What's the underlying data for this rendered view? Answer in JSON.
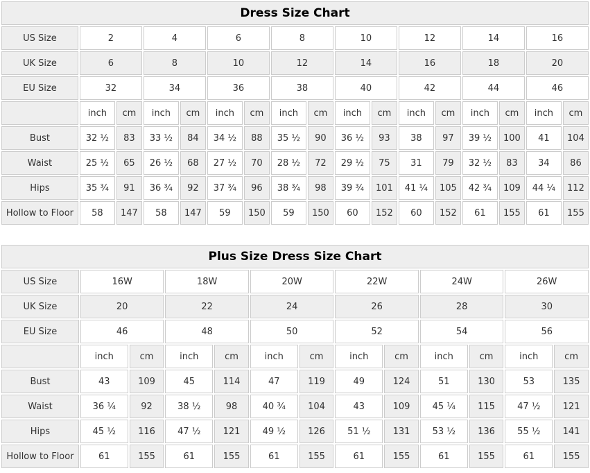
{
  "colors": {
    "cell_gray": "#eeeeee",
    "cell_white": "#ffffff",
    "border": "#cccccc",
    "text": "#333333",
    "title_text": "#000000"
  },
  "chart_data": [
    {
      "type": "table",
      "title": "Dress Size Chart",
      "unit_labels": {
        "inch": "inch",
        "cm": "cm"
      },
      "size_rows": [
        {
          "label": "US Size",
          "values": [
            "2",
            "4",
            "6",
            "8",
            "10",
            "12",
            "14",
            "16"
          ]
        },
        {
          "label": "UK Size",
          "values": [
            "6",
            "8",
            "10",
            "12",
            "14",
            "16",
            "18",
            "20"
          ]
        },
        {
          "label": "EU Size",
          "values": [
            "32",
            "34",
            "36",
            "38",
            "40",
            "42",
            "44",
            "46"
          ]
        }
      ],
      "measurement_rows": [
        {
          "label": "Bust",
          "inch": [
            "32 ½",
            "33 ½",
            "34 ½",
            "35 ½",
            "36 ½",
            "38",
            "39 ½",
            "41"
          ],
          "cm": [
            "83",
            "84",
            "88",
            "90",
            "93",
            "97",
            "100",
            "104"
          ]
        },
        {
          "label": "Waist",
          "inch": [
            "25 ½",
            "26 ½",
            "27 ½",
            "28 ½",
            "29 ½",
            "31",
            "32 ½",
            "34"
          ],
          "cm": [
            "65",
            "68",
            "70",
            "72",
            "75",
            "79",
            "83",
            "86"
          ]
        },
        {
          "label": "Hips",
          "inch": [
            "35 ¾",
            "36 ¾",
            "37 ¾",
            "38 ¾",
            "39 ¾",
            "41 ¼",
            "42 ¾",
            "44 ¼"
          ],
          "cm": [
            "91",
            "92",
            "96",
            "98",
            "101",
            "105",
            "109",
            "112"
          ]
        },
        {
          "label": "Hollow to Floor",
          "inch": [
            "58",
            "58",
            "59",
            "59",
            "60",
            "60",
            "61",
            "61"
          ],
          "cm": [
            "147",
            "147",
            "150",
            "150",
            "152",
            "152",
            "155",
            "155"
          ]
        }
      ]
    },
    {
      "type": "table",
      "title": "Plus Size Dress Size Chart",
      "unit_labels": {
        "inch": "inch",
        "cm": "cm"
      },
      "size_rows": [
        {
          "label": "US Size",
          "values": [
            "16W",
            "18W",
            "20W",
            "22W",
            "24W",
            "26W"
          ]
        },
        {
          "label": "UK Size",
          "values": [
            "20",
            "22",
            "24",
            "26",
            "28",
            "30"
          ]
        },
        {
          "label": "EU Size",
          "values": [
            "46",
            "48",
            "50",
            "52",
            "54",
            "56"
          ]
        }
      ],
      "measurement_rows": [
        {
          "label": "Bust",
          "inch": [
            "43",
            "45",
            "47",
            "49",
            "51",
            "53"
          ],
          "cm": [
            "109",
            "114",
            "119",
            "124",
            "130",
            "135"
          ]
        },
        {
          "label": "Waist",
          "inch": [
            "36 ¼",
            "38 ½",
            "40 ¾",
            "43",
            "45 ¼",
            "47 ½"
          ],
          "cm": [
            "92",
            "98",
            "104",
            "109",
            "115",
            "121"
          ]
        },
        {
          "label": "Hips",
          "inch": [
            "45 ½",
            "47 ½",
            "49 ½",
            "51 ½",
            "53 ½",
            "55 ½"
          ],
          "cm": [
            "116",
            "121",
            "126",
            "131",
            "136",
            "141"
          ]
        },
        {
          "label": "Hollow to Floor",
          "inch": [
            "61",
            "61",
            "61",
            "61",
            "61",
            "61"
          ],
          "cm": [
            "155",
            "155",
            "155",
            "155",
            "155",
            "155"
          ]
        }
      ]
    }
  ]
}
